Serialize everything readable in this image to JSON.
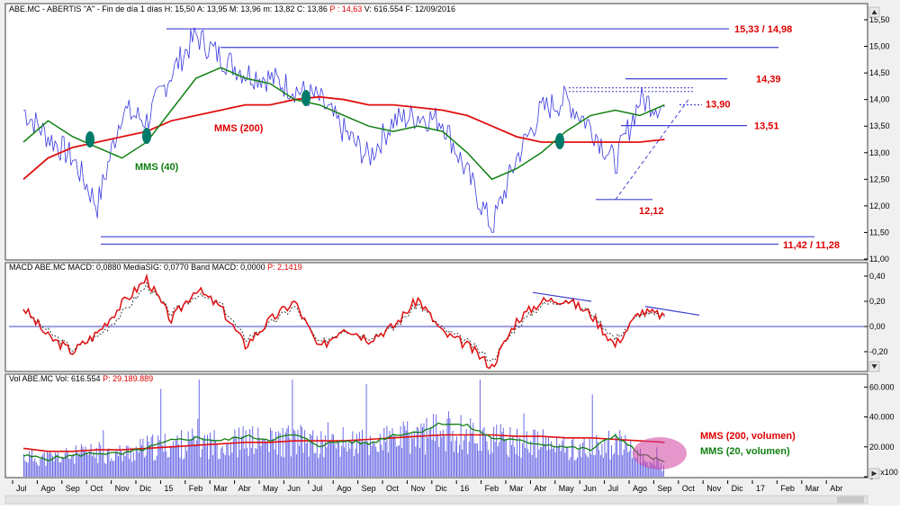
{
  "colors": {
    "price": "#3a3ae0",
    "mms200": "#e01010",
    "mms40": "#108010",
    "macd": "#e01010",
    "signal": "#404040",
    "hline": "#4040d0",
    "volume": "#6a6ae6",
    "annotation_red": "#e00000",
    "annotation_green": "#108010",
    "marker": "#007a6a",
    "highlight": "#d040a0"
  },
  "panels": {
    "price": {
      "header_parts": [
        {
          "text": "ABE.MC - ABERTIS  \"A\" - Fin de día 1 días H: 15,50  A: 13,95  M: 13,96  m: 13,82  C: 13,86",
          "red": false
        },
        {
          "text": "  P : 14,63",
          "red": true
        },
        {
          "text": "  V: 616.554  F: 12/09/2016",
          "red": false
        }
      ],
      "yticks": [
        "15,50",
        "15,00",
        "14,50",
        "14,00",
        "13,50",
        "13,00",
        "12,50",
        "12,00",
        "11,50",
        "11,00"
      ],
      "labels": {
        "mms200": "MMS (200)",
        "mms40": "MMS (40)",
        "level_1533": "15,33 / 14,98",
        "level_1439": "14,39",
        "level_1390": "13,90",
        "level_1351": "13,51",
        "level_1212": "12,12",
        "level_1142": "11,42 / 11,28"
      }
    },
    "macd": {
      "header_parts": [
        {
          "text": "MACD  ABE.MC MACD: 0,0880  MediaSIG: 0,0770  Band  MACD: 0,0000",
          "red": false
        },
        {
          "text": "  P: 2,1419",
          "red": true
        }
      ],
      "yticks": [
        "0,40",
        "0,20",
        "0,00",
        "-0,20"
      ]
    },
    "volume": {
      "header_parts": [
        {
          "text": "Vol  ABE.MC Vol: 616.554",
          "red": false
        },
        {
          "text": "  P: 29.189.889",
          "red": true
        }
      ],
      "yticks": [
        "60.000",
        "40.000",
        "20.000",
        "0"
      ],
      "scale_label": "x100",
      "labels": {
        "mms200_vol": "MMS (200, volumen)",
        "mms20_vol": "MMS (20, volumen)"
      }
    }
  },
  "xaxis": {
    "months": [
      "Jul",
      "Ago",
      "Sep",
      "Oct",
      "Nov",
      "Dic",
      "15",
      "Feb",
      "Mar",
      "Abr",
      "May",
      "Jun",
      "Jul",
      "Ago",
      "Sep",
      "Oct",
      "Nov",
      "Dic",
      "16",
      "Feb",
      "Mar",
      "Abr",
      "May",
      "Jun",
      "Jul",
      "Ago",
      "Sep",
      "Oct",
      "Nov",
      "Dic",
      "17",
      "Feb",
      "Mar",
      "Abr"
    ]
  },
  "chart_data": [
    {
      "type": "line",
      "panel": "price",
      "ylim": [
        11.0,
        15.5
      ],
      "x": [
        "Jul",
        "Ago",
        "Sep",
        "Oct",
        "Nov",
        "Dic",
        "15",
        "Feb",
        "Mar",
        "Abr",
        "May",
        "Jun",
        "Jul",
        "Ago",
        "Sep",
        "Oct",
        "Nov",
        "Dic",
        "16",
        "Feb",
        "Mar",
        "Abr",
        "May",
        "Jun",
        "Jul",
        "Ago",
        "Sep"
      ],
      "series": [
        {
          "name": "MMS (200)",
          "values": [
            12.5,
            12.9,
            13.1,
            13.2,
            13.3,
            13.4,
            13.6,
            13.7,
            13.8,
            13.9,
            13.9,
            14.0,
            14.05,
            14.0,
            13.9,
            13.9,
            13.85,
            13.8,
            13.7,
            13.5,
            13.3,
            13.2,
            13.2,
            13.2,
            13.2,
            13.2,
            13.25
          ]
        },
        {
          "name": "MMS (40)",
          "values": [
            13.2,
            13.6,
            13.3,
            13.1,
            12.9,
            13.2,
            13.8,
            14.4,
            14.6,
            14.4,
            14.3,
            14.0,
            13.9,
            13.7,
            13.5,
            13.4,
            13.5,
            13.4,
            13.0,
            12.5,
            12.7,
            13.0,
            13.4,
            13.7,
            13.8,
            13.7,
            13.9
          ]
        },
        {
          "values": [
            13.8,
            13.3,
            12.9,
            12.0,
            13.8,
            13.6,
            14.5,
            15.2,
            14.8,
            14.5,
            14.4,
            14.2,
            14.0,
            13.4,
            12.9,
            13.6,
            13.7,
            13.6,
            12.6,
            11.6,
            12.9,
            13.8,
            14.0,
            13.5,
            12.8,
            14.0,
            13.86
          ]
        }
      ],
      "horizontal_levels": [
        15.33,
        14.98,
        14.39,
        13.9,
        13.51,
        12.12,
        11.42,
        11.28
      ]
    },
    {
      "type": "line",
      "panel": "macd",
      "ylim": [
        -0.35,
        0.45
      ],
      "x": [
        "Jul",
        "Ago",
        "Sep",
        "Oct",
        "Nov",
        "Dic",
        "15",
        "Feb",
        "Mar",
        "Abr",
        "May",
        "Jun",
        "Jul",
        "Ago",
        "Sep",
        "Oct",
        "Nov",
        "Dic",
        "16",
        "Feb",
        "Mar",
        "Abr",
        "May",
        "Jun",
        "Jul",
        "Ago",
        "Sep"
      ],
      "series": [
        {
          "values": [
            0.15,
            -0.08,
            -0.2,
            -0.05,
            0.18,
            0.38,
            0.05,
            0.3,
            0.15,
            -0.15,
            0.05,
            0.2,
            -0.18,
            0.0,
            -0.1,
            0.0,
            0.22,
            -0.05,
            -0.15,
            -0.32,
            0.05,
            0.2,
            0.22,
            0.1,
            -0.15,
            0.12,
            0.088
          ]
        },
        {
          "values": [
            0.14,
            -0.04,
            -0.18,
            -0.08,
            0.1,
            0.33,
            0.1,
            0.25,
            0.18,
            -0.1,
            0.02,
            0.16,
            -0.14,
            -0.02,
            -0.08,
            -0.02,
            0.18,
            -0.02,
            -0.12,
            -0.27,
            0.0,
            0.17,
            0.21,
            0.12,
            -0.1,
            0.1,
            0.077
          ]
        }
      ]
    },
    {
      "type": "bar",
      "panel": "volume",
      "ylim": [
        0,
        65000
      ],
      "x": [
        "Jul",
        "Ago",
        "Sep",
        "Oct",
        "Nov",
        "Dic",
        "15",
        "Feb",
        "Mar",
        "Abr",
        "May",
        "Jun",
        "Jul",
        "Ago",
        "Sep",
        "Oct",
        "Nov",
        "Dic",
        "16",
        "Feb",
        "Mar",
        "Abr",
        "May",
        "Jun",
        "Jul",
        "Ago",
        "Sep"
      ],
      "values": [
        14000,
        13000,
        15000,
        17000,
        16000,
        20000,
        22000,
        24000,
        23000,
        25000,
        24000,
        26000,
        22000,
        24000,
        23000,
        26000,
        28000,
        32000,
        30000,
        26000,
        24000,
        23000,
        20000,
        19000,
        24000,
        14000,
        6165
      ],
      "series": [
        {
          "name": "MMS (200, volumen)",
          "values": [
            19000,
            17000,
            17000,
            18000,
            18000,
            19000,
            20000,
            21000,
            22000,
            23000,
            23000,
            24000,
            24000,
            24000,
            25000,
            26000,
            27000,
            28000,
            28000,
            28000,
            27000,
            27000,
            26000,
            26000,
            25000,
            24000,
            23000
          ]
        },
        {
          "name": "MMS (20, volumen)",
          "values": [
            14000,
            12000,
            14000,
            16000,
            15000,
            19000,
            24000,
            26000,
            24000,
            27000,
            25000,
            28000,
            21000,
            24000,
            22000,
            28000,
            30000,
            36000,
            34000,
            26000,
            24000,
            22000,
            20000,
            18000,
            28000,
            15000,
            10000
          ]
        }
      ]
    }
  ]
}
